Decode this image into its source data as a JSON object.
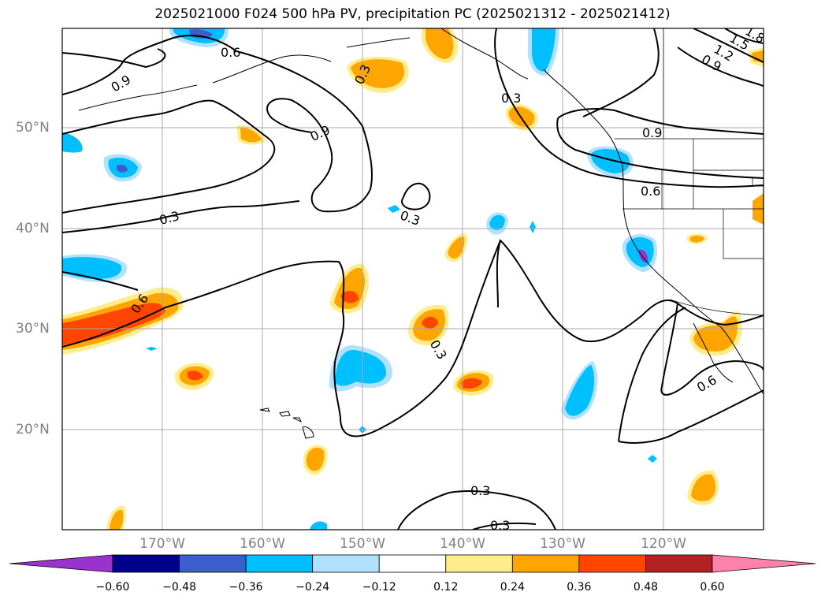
{
  "title": "2025021000 F024 500 hPa PV, precipitation PC (2025021312 - 2025021412)",
  "latitude_labels": [
    {
      "id": "lat-50",
      "text": "50°N",
      "value": 50
    },
    {
      "id": "lat-40",
      "text": "40°N",
      "value": 40
    },
    {
      "id": "lat-30",
      "text": "30°N",
      "value": 30
    },
    {
      "id": "lat-20",
      "text": "20°N",
      "value": 20
    }
  ],
  "longitude_labels": [
    {
      "id": "lon-170",
      "text": "170°W",
      "value": -170
    },
    {
      "id": "lon-160",
      "text": "160°W",
      "value": -160
    },
    {
      "id": "lon-150",
      "text": "150°W",
      "value": -150
    },
    {
      "id": "lon-140",
      "text": "140°W",
      "value": -140
    },
    {
      "id": "lon-130",
      "text": "130°W",
      "value": -130
    },
    {
      "id": "lon-120",
      "text": "120°W",
      "value": -120
    }
  ],
  "contour_labels": [
    "0.3",
    "0.6",
    "0.9",
    "1.2",
    "1.5",
    "1.8"
  ],
  "colorbar": {
    "colors": [
      "#9a32cd",
      "#00008b",
      "#3a5fcd",
      "#00bfff",
      "#b0e2ff",
      "#ffffff",
      "#ffec8b",
      "#ffa500",
      "#ff4500",
      "#b22222",
      "#ff82ab"
    ],
    "tick_labels": [
      "−0.60",
      "−0.48",
      "−0.36",
      "−0.24",
      "−0.12",
      "0.12",
      "0.24",
      "0.36",
      "0.48",
      "0.60"
    ],
    "extend": "both"
  },
  "map_extent": {
    "lon_min": -180,
    "lon_max": -110,
    "lat_min": 10,
    "lat_max": 60
  }
}
